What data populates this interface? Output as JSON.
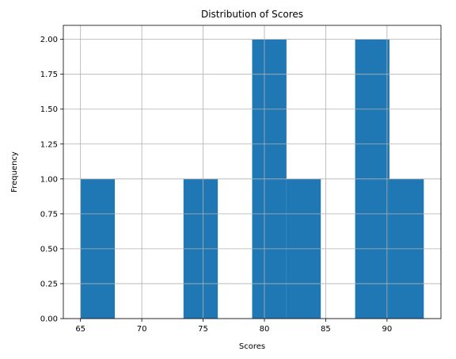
{
  "chart_data": {
    "type": "bar",
    "title": "Distribution of Scores",
    "xlabel": "Scores",
    "ylabel": "Frequency",
    "bins": [
      {
        "start": 65.0,
        "end": 67.8,
        "count": 1
      },
      {
        "start": 67.8,
        "end": 70.6,
        "count": 0
      },
      {
        "start": 70.6,
        "end": 73.4,
        "count": 0
      },
      {
        "start": 73.4,
        "end": 76.2,
        "count": 1
      },
      {
        "start": 76.2,
        "end": 79.0,
        "count": 0
      },
      {
        "start": 79.0,
        "end": 81.8,
        "count": 2
      },
      {
        "start": 81.8,
        "end": 84.6,
        "count": 1
      },
      {
        "start": 84.6,
        "end": 87.4,
        "count": 0
      },
      {
        "start": 87.4,
        "end": 90.2,
        "count": 2
      },
      {
        "start": 90.2,
        "end": 93.0,
        "count": 1
      }
    ],
    "xlim": [
      63.6,
      94.4
    ],
    "ylim": [
      0,
      2.1
    ],
    "xticks": [
      65,
      70,
      75,
      80,
      85,
      90
    ],
    "xtick_labels": [
      "65",
      "70",
      "75",
      "80",
      "85",
      "90"
    ],
    "yticks": [
      0,
      0.25,
      0.5,
      0.75,
      1.0,
      1.25,
      1.5,
      1.75,
      2.0
    ],
    "ytick_labels": [
      "0.00",
      "0.25",
      "0.50",
      "0.75",
      "1.00",
      "1.25",
      "1.50",
      "1.75",
      "2.00"
    ],
    "grid": true,
    "colors": {
      "bar": "#1f77b4",
      "grid": "#b0b0b0",
      "axis": "#000000"
    }
  }
}
